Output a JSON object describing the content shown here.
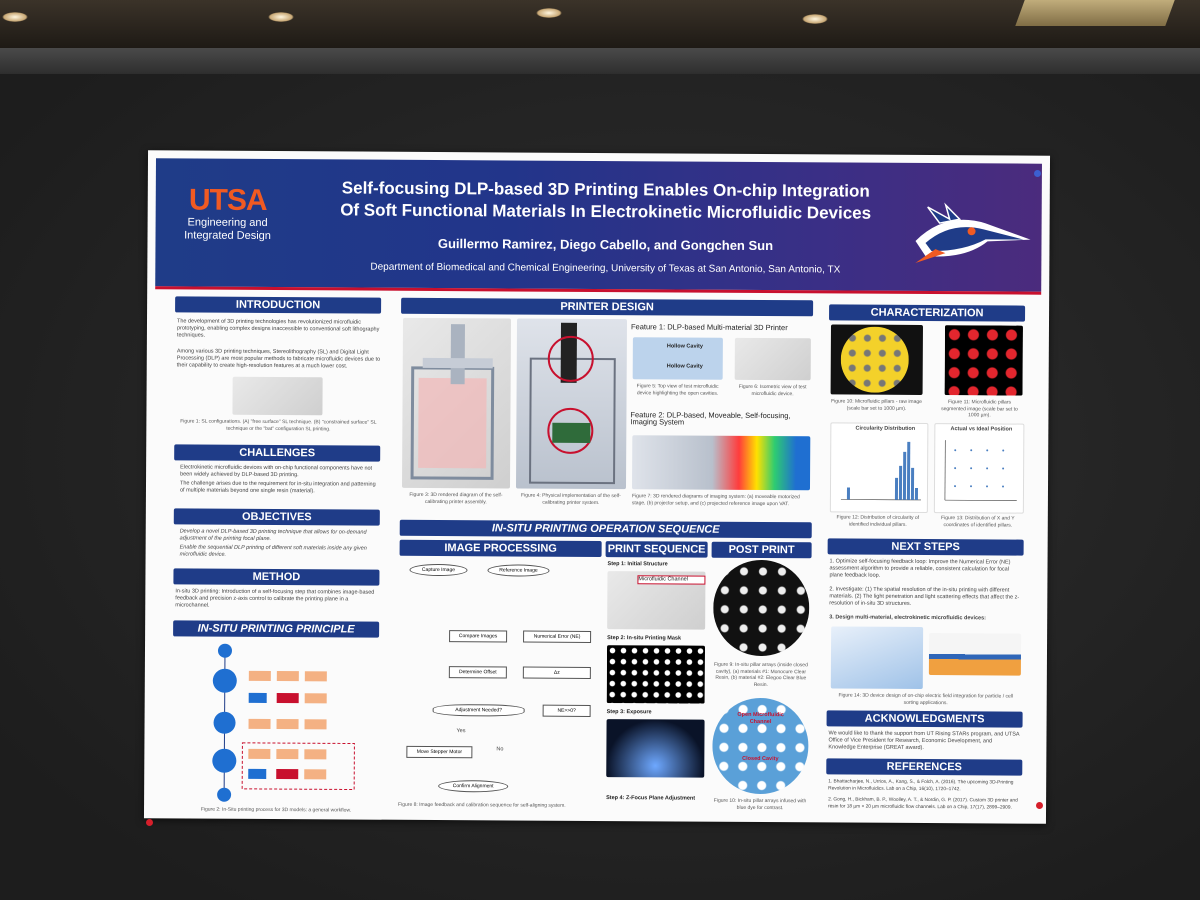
{
  "scene": {
    "colors": {
      "banner_blue": "#1f3c88",
      "utsa_orange": "#f15a22",
      "accent_red": "#c8102e",
      "board": "#262626"
    }
  },
  "poster": {
    "logo": {
      "name": "UTSA",
      "line1": "Engineering and",
      "line2": "Integrated Design"
    },
    "title_line1": "Self-focusing DLP-based 3D Printing Enables On-chip Integration",
    "title_line2": "Of Soft Functional Materials In Electrokinetic Microfluidic Devices",
    "authors": "Guillermo Ramirez, Diego Cabello, and Gongchen Sun",
    "department": "Department of Biomedical and Chemical Engineering, University of Texas at San Antonio, San Antonio, TX",
    "sections": {
      "introduction": {
        "heading": "INTRODUCTION",
        "p1": "The development of 3D printing technologies has revolutionized microfluidic prototyping, enabling complex designs inaccessible to conventional soft lithography techniques.",
        "p2": "Among various 3D printing techniques, Stereolithography (SL) and Digital Light Processing (DLP) are most popular methods to fabricate microfluidic devices due to their capability to create high-resolution features at a much lower cost.",
        "fig1": "Figure 1: SL configurations. (A) \"free surface\" SL technique. (B) \"constrained surface\" SL technique or the \"bat\" configuration SL printing."
      },
      "challenges": {
        "heading": "CHALLENGES",
        "b1": "Electrokinetic microfluidic devices with on-chip functional components have not been widely achieved by DLP-based 3D printing.",
        "b2": "The challenge arises due to the requirement for in-situ integration and patterning of multiple materials beyond one single resin (material)."
      },
      "objectives": {
        "heading": "OBJECTIVES",
        "b1": "Develop a novel DLP-based 3D printing technique that allows for on-demand adjustment of the printing focal plane.",
        "b2": "Enable the sequential DLP printing of different soft materials inside any given microfluidic device."
      },
      "method": {
        "heading": "METHOD",
        "p1": "In-situ 3D printing: Introduction of a self-focusing step that combines image-based feedback and precision z-axis control to calibrate the printing plane in a microchannel."
      },
      "principle": {
        "heading": "IN-SITU PRINTING PRINCIPLE",
        "fig2": "Figure 2: In-Situ printing process for 3D models: a general workflow."
      },
      "printer_design": {
        "heading": "PRINTER DESIGN",
        "feature1": "Feature 1: DLP-based Multi-material 3D Printer",
        "feature2": "Feature 2: DLP-based, Moveable, Self-focusing, Imaging System",
        "label_hollow1": "Hollow Cavity",
        "label_hollow2": "Hollow Cavity",
        "fig3": "Figure 3: 3D rendered diagram of the self-calibrating printer assembly.",
        "fig4": "Figure 4: Physical implementation of the self-calibrating printer system.",
        "fig5": "Figure 5: Top view of test microfluidic device highlighting the open cavities.",
        "fig6": "Figure 6: Isometric view of test microfluidic device.",
        "fig7": "Figure 7: 3D rendered diagrams of imaging system: (a) moveable motorized stage, (b) projector setup, and (c) projected reference image upon VAT."
      },
      "sequence": {
        "heading": "IN-SITU PRINTING OPERATION SEQUENCE",
        "image_processing": "IMAGE PROCESSING",
        "print_sequence": "PRINT SEQUENCE",
        "post_print": "POST PRINT",
        "flow": {
          "capture": "Capture Image",
          "reference": "Reference Image",
          "compare": "Compare Images",
          "numerical": "Numerical Error (NE)",
          "offset": "Determine Offset",
          "dz": "Δz",
          "adjust": "Adjustment Needed?",
          "ne": "NE>>0?",
          "yes": "Yes",
          "no": "No",
          "motor": "Move Stepper Motor",
          "confirm": "Confirm Alignment"
        },
        "step1": "Step 1: Initial Structure",
        "step1_label": "Microfluidic Channel",
        "step2": "Step 2: In-situ Printing Mask",
        "step3": "Step 3: Exposure",
        "step4": "Step 4: Z-Focus Plane Adjustment",
        "fig8": "Figure 8: Image feedback and calibration sequence for self-aligning system.",
        "fig9": "Figure 9: In-situ pillar arrays (inside closed cavity), (a) materials #1: Monocure Clear Resin, (b) material #2: Elegoo Clear Blue Resin.",
        "open_label": "Open Microfluidic Channel",
        "closed_label": "Closed Cavity",
        "fig10": "Figure 10: In-situ pillar arrays infused with blue dye for contrast."
      },
      "characterization": {
        "heading": "CHARACTERIZATION",
        "fig10b": "Figure 10: Microfluidic pillars - raw image (scale bar set to 1000 µm).",
        "fig11": "Figure 11: Microfluidic pillars segmented image (scale bar set to 1000 µm).",
        "chart1_title": "Circularity Distribution",
        "chart2_title": "Actual vs Ideal Position",
        "fig12": "Figure 12: Distribution of circularity of identified individual pillars.",
        "fig13": "Figure 13: Distribution of X and Y coordinates of identified pillars."
      },
      "next_steps": {
        "heading": "NEXT STEPS",
        "s1": "1. Optimize self-focusing feedback loop: Improve the Numerical Error (NE) assessment algorithm to provide a reliable, consistent calculation for focal plane feedback loop.",
        "s2": "2. Investigate: (1) The spatial resolution of the in-situ printing with different materials. (2) The light penetration and light scattering effects that affect the z-resolution of in-situ 3D structures.",
        "s3": "3. Design multi-material, electrokinetic microfluidic devices:",
        "fig14": "Figure 14: 3D device design of on-chip electric field integration for particle / cell sorting applications."
      },
      "acknowledgments": {
        "heading": "ACKNOWLEDGMENTS",
        "p1": "We would like to thank the support from UT Rising STARs program, and UTSA Office of Vice President for Research, Economic Development, and Knowledge Enterprise (GREAT award)."
      },
      "references": {
        "heading": "REFERENCES",
        "r1": "1. Bhattacharjee, N., Urrios, A., Kang, S., & Folch, A. (2016). The upcoming 3D-Printing Revolution in Microfluidics. Lab on a Chip, 16(10), 1720–1742.",
        "r2": "2. Gong, H., Bickham, B. P., Woolley, A. T., & Nordin, G. P. (2017). Custom 3D printer and resin for 18 µm × 20 µm microfluidic flow channels. Lab on a Chip, 17(17), 2899–2909."
      }
    }
  }
}
